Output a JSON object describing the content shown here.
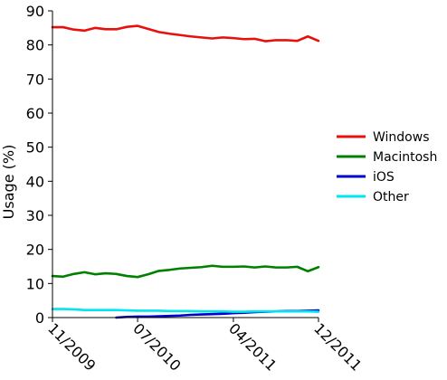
{
  "chart_data": {
    "type": "line",
    "title": "",
    "xlabel": "",
    "ylabel": "Usage (%)",
    "ylim": [
      0,
      90
    ],
    "yticks": [
      0,
      10,
      20,
      30,
      40,
      50,
      60,
      70,
      80,
      90
    ],
    "grid": false,
    "legend_position": "right",
    "x": [
      "11/2009",
      "12/2009",
      "01/2010",
      "02/2010",
      "03/2010",
      "04/2010",
      "05/2010",
      "06/2010",
      "07/2010",
      "08/2010",
      "09/2010",
      "10/2010",
      "11/2010",
      "12/2010",
      "01/2011",
      "02/2011",
      "03/2011",
      "04/2011",
      "05/2011",
      "06/2011",
      "07/2011",
      "08/2011",
      "09/2011",
      "10/2011",
      "11/2011",
      "12/2011"
    ],
    "xticks": [
      "11/2009",
      "07/2010",
      "04/2011",
      "12/2011"
    ],
    "series": [
      {
        "name": "Windows",
        "color": "#e8100c",
        "values": [
          85.2,
          85.2,
          84.5,
          84.2,
          85.0,
          84.6,
          84.6,
          85.3,
          85.6,
          84.7,
          83.8,
          83.3,
          82.9,
          82.5,
          82.2,
          81.9,
          82.2,
          82.0,
          81.7,
          81.8,
          81.1,
          81.4,
          81.4,
          81.2,
          82.5,
          81.2
        ]
      },
      {
        "name": "Macintosh",
        "color": "#008000",
        "values": [
          12.2,
          12.0,
          12.8,
          13.3,
          12.7,
          13.0,
          12.8,
          12.2,
          11.9,
          12.7,
          13.7,
          14.0,
          14.4,
          14.6,
          14.8,
          15.2,
          14.9,
          14.9,
          15.0,
          14.7,
          15.0,
          14.7,
          14.7,
          14.9,
          13.6,
          14.8
        ]
      },
      {
        "name": "iOS",
        "color": "#0000cc",
        "values": [
          null,
          null,
          null,
          null,
          null,
          null,
          0.0,
          0.2,
          0.3,
          0.3,
          0.4,
          0.5,
          0.6,
          0.8,
          0.9,
          1.0,
          1.1,
          1.3,
          1.4,
          1.6,
          1.7,
          1.8,
          1.9,
          1.9,
          2.0,
          2.1
        ]
      },
      {
        "name": "Other",
        "color": "#00e5ee",
        "values": [
          2.5,
          2.5,
          2.4,
          2.2,
          2.2,
          2.2,
          2.2,
          2.1,
          2.0,
          2.0,
          2.0,
          1.9,
          1.9,
          1.9,
          1.8,
          1.8,
          1.8,
          1.7,
          1.7,
          1.8,
          1.8,
          1.8,
          1.8,
          1.8,
          1.8,
          1.7
        ]
      }
    ]
  }
}
